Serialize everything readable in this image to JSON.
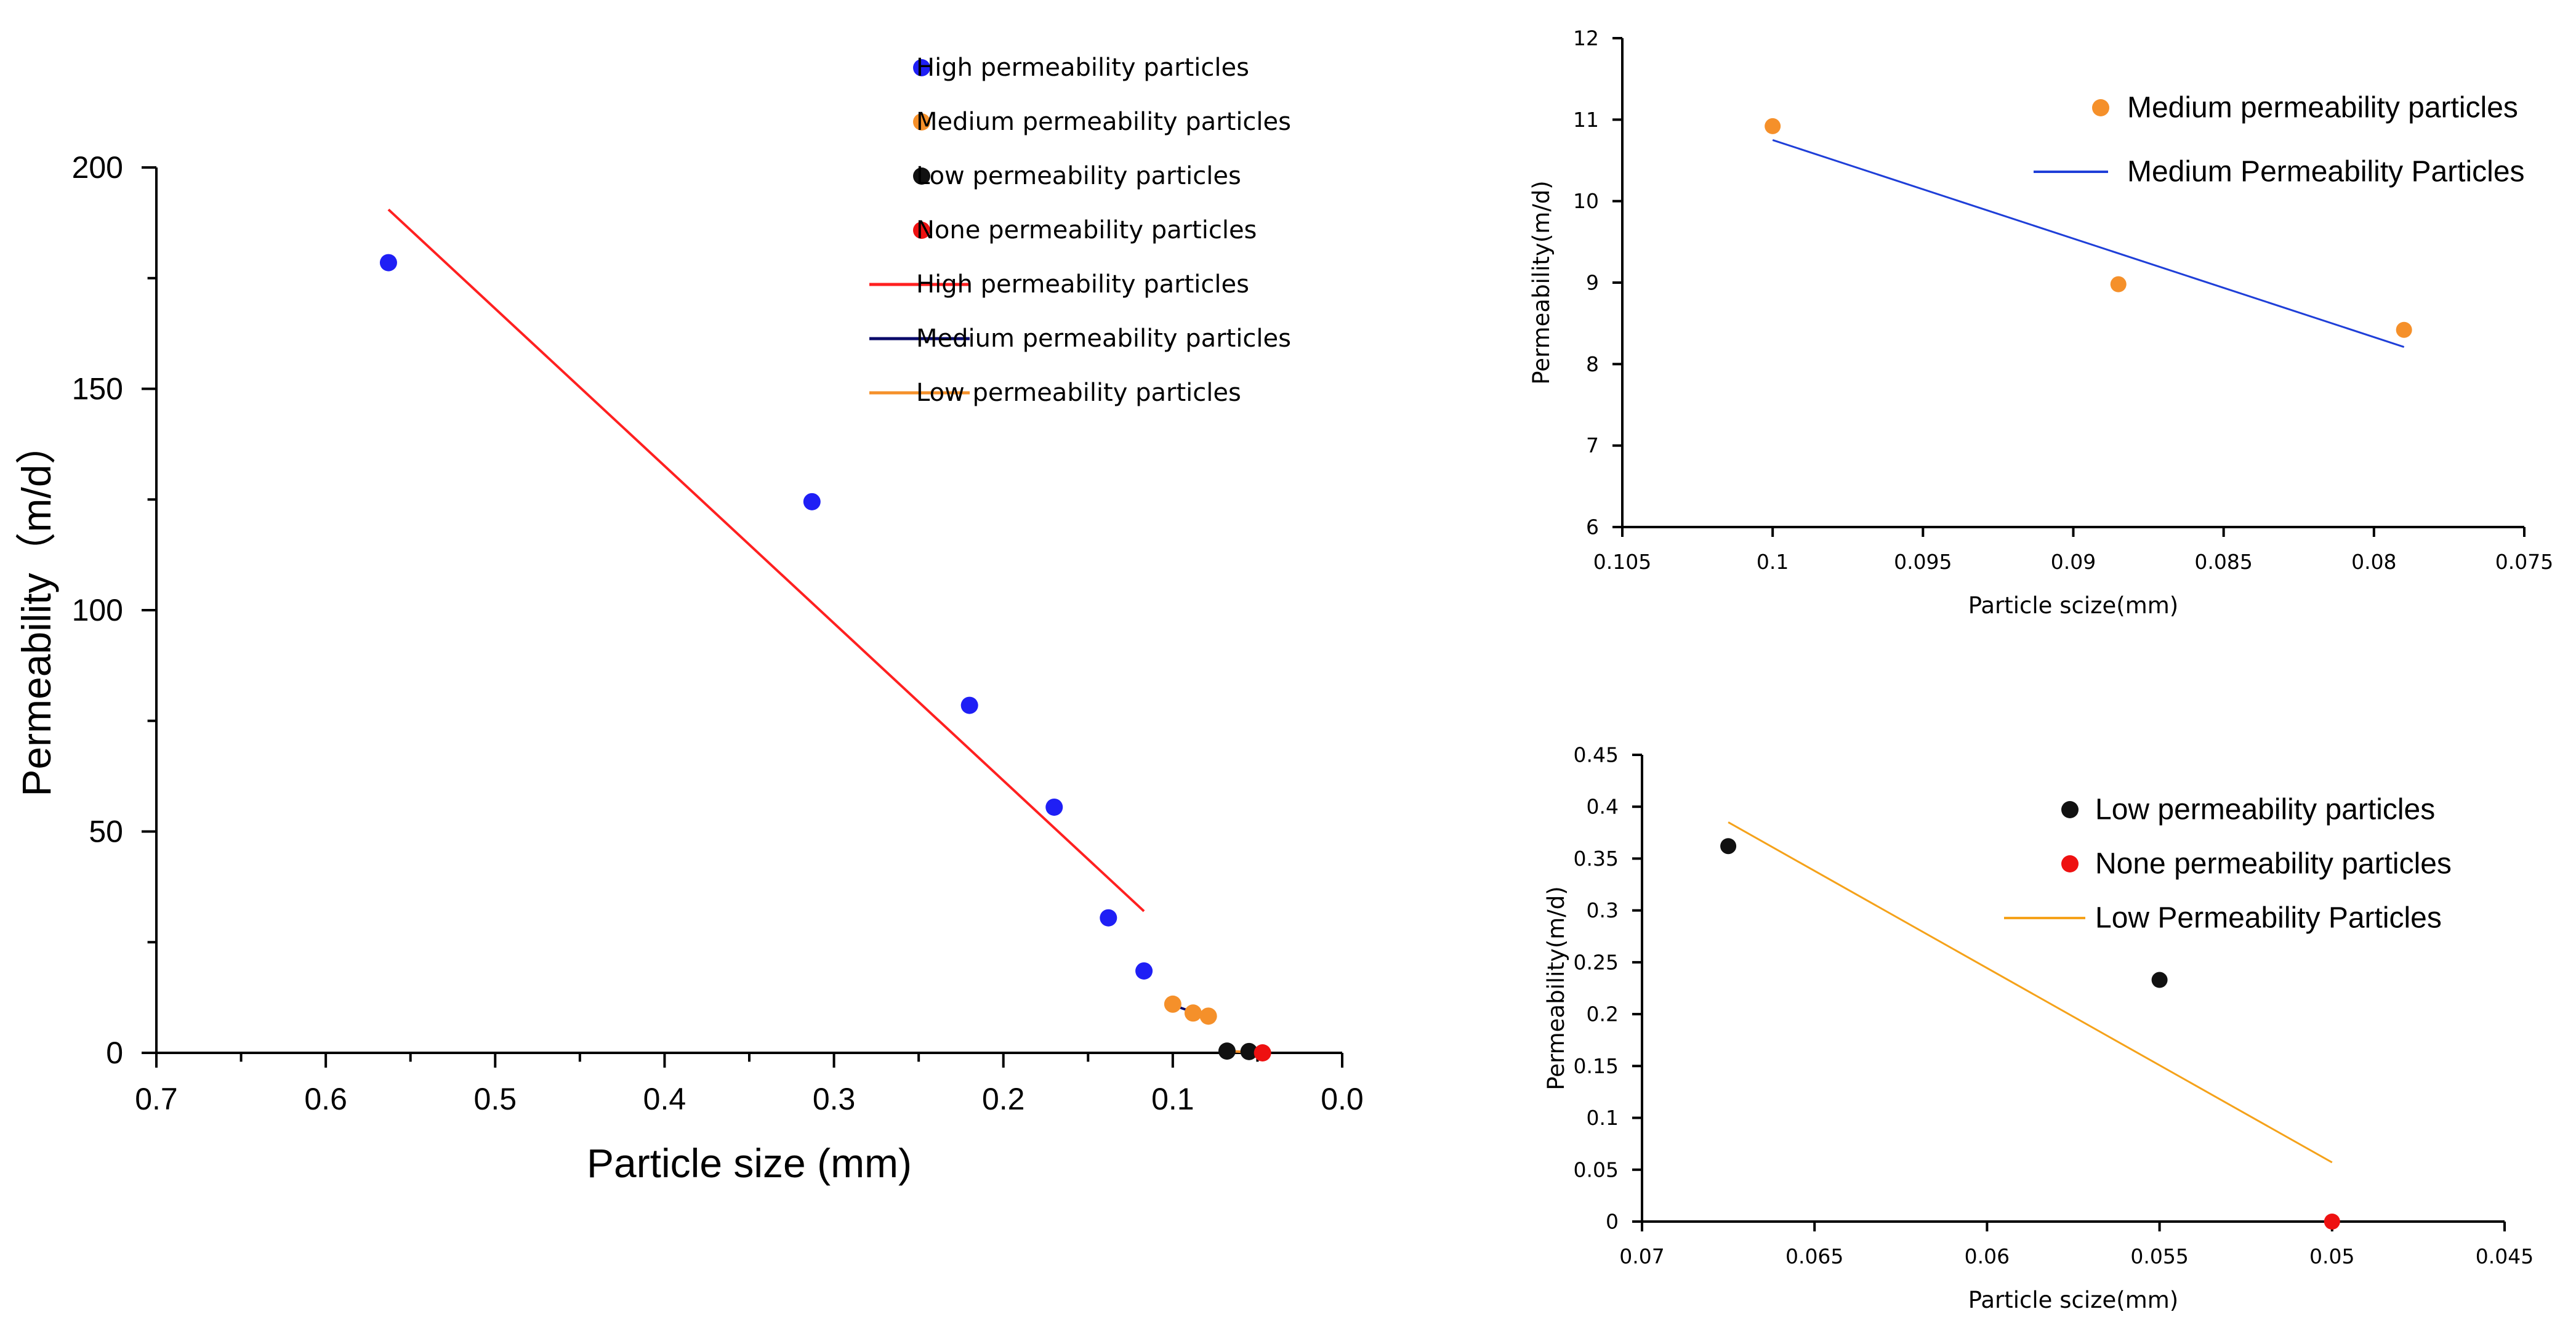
{
  "chart_data": [
    {
      "type": "scatter",
      "xlabel": "Particle size (mm)",
      "ylabel": "Permeability（m/d）",
      "xlim": [
        0.7,
        0.0
      ],
      "ylim": [
        0,
        200
      ],
      "x_ticks": [
        "0.7",
        "0.6",
        "0.5",
        "0.4",
        "0.3",
        "0.2",
        "0.1",
        "0.0"
      ],
      "y_ticks": [
        "0",
        "50",
        "100",
        "150",
        "200"
      ],
      "legend_position": "top-right",
      "series": [
        {
          "name": "High permeability particles",
          "kind": "scatter",
          "color": "#1f1ff5",
          "points": [
            [
              0.563,
              178.5
            ],
            [
              0.313,
              124.5
            ],
            [
              0.22,
              78.5
            ],
            [
              0.17,
              55.5
            ],
            [
              0.138,
              30.5
            ],
            [
              0.117,
              18.5
            ]
          ]
        },
        {
          "name": "Medium permeability particles",
          "kind": "scatter",
          "color": "#f5902a",
          "points": [
            [
              0.1,
              11.0
            ],
            [
              0.088,
              9.0
            ],
            [
              0.079,
              8.3
            ]
          ]
        },
        {
          "name": "Low permeability particles",
          "kind": "scatter",
          "color": "#111111",
          "points": [
            [
              0.068,
              0.4
            ],
            [
              0.055,
              0.3
            ]
          ]
        },
        {
          "name": "None permeability particles",
          "kind": "scatter",
          "color": "#ee1111",
          "points": [
            [
              0.047,
              0.0
            ]
          ]
        },
        {
          "name": "High permeability particles",
          "kind": "line",
          "color": "#ff2020",
          "points": [
            [
              0.563,
              190.5
            ],
            [
              0.117,
              32.0
            ]
          ]
        },
        {
          "name": "Medium permeability particles",
          "kind": "line",
          "color": "#0a0a6a",
          "points": [
            [
              0.1,
              10.8
            ],
            [
              0.079,
              8.0
            ]
          ]
        },
        {
          "name": "Low permeability particles",
          "kind": "line",
          "color": "#f5902a",
          "points": [
            [
              0.068,
              0.4
            ],
            [
              0.05,
              0.1
            ]
          ]
        }
      ]
    },
    {
      "type": "scatter",
      "xlabel": "Particle scize(mm)",
      "ylabel": "Permeability(m/d)",
      "xlim": [
        0.105,
        0.075
      ],
      "ylim": [
        6,
        12
      ],
      "x_ticks": [
        "0.105",
        "0.1",
        "0.095",
        "0.09",
        "0.085",
        "0.08",
        "0.075"
      ],
      "y_ticks": [
        "6",
        "7",
        "8",
        "9",
        "10",
        "11",
        "12"
      ],
      "legend_position": "top-right",
      "series": [
        {
          "name": "Medium permeability particles",
          "kind": "scatter",
          "color": "#f5902a",
          "points": [
            [
              0.1,
              10.92
            ],
            [
              0.0885,
              8.98
            ],
            [
              0.079,
              8.42
            ]
          ]
        },
        {
          "name": "Medium Permeability Particles",
          "kind": "line",
          "color": "#1f3fd8",
          "points": [
            [
              0.1,
              10.75
            ],
            [
              0.079,
              8.21
            ]
          ]
        }
      ]
    },
    {
      "type": "scatter",
      "xlabel": "Particle scize(mm)",
      "ylabel": "Permeability(m/d)",
      "xlim": [
        0.07,
        0.045
      ],
      "ylim": [
        0,
        0.45
      ],
      "x_ticks": [
        "0.07",
        "0.065",
        "0.06",
        "0.055",
        "0.05",
        "0.045"
      ],
      "y_ticks": [
        "0",
        "0.05",
        "0.1",
        "0.15",
        "0.2",
        "0.25",
        "0.3",
        "0.35",
        "0.4",
        "0.45"
      ],
      "legend_position": "top-right",
      "series": [
        {
          "name": "Low permeability particles",
          "kind": "scatter",
          "color": "#111111",
          "points": [
            [
              0.0675,
              0.362
            ],
            [
              0.055,
              0.233
            ]
          ]
        },
        {
          "name": "None permeability particles",
          "kind": "scatter",
          "color": "#ee1111",
          "points": [
            [
              0.05,
              0.0
            ]
          ]
        },
        {
          "name": "Low Permeability Particles",
          "kind": "line",
          "color": "#f5a21a",
          "points": [
            [
              0.0675,
              0.385
            ],
            [
              0.05,
              0.057
            ]
          ]
        }
      ]
    }
  ]
}
